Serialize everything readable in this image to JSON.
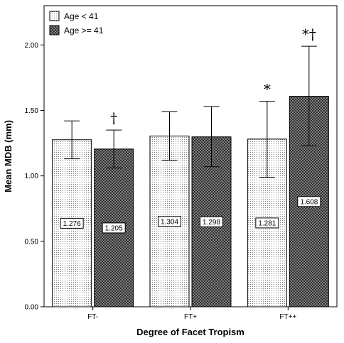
{
  "chart_data": {
    "type": "bar",
    "xlabel": "Degree of Facet Tropism",
    "ylabel": "Mean MDB (mm)",
    "ylim": [
      0,
      2.3
    ],
    "yticks": [
      "0.00",
      "0.50",
      "1.00",
      "1.50",
      "2.00"
    ],
    "categories": [
      "FT-",
      "FT+",
      "FT++"
    ],
    "legend_position": "top-left",
    "grid": false,
    "series": [
      {
        "name": "Age < 41",
        "pattern": "dots",
        "values": [
          1.276,
          1.304,
          1.281
        ],
        "value_labels": [
          "1.276",
          "1.304",
          "1.281"
        ],
        "error_low": [
          1.13,
          1.12,
          0.99
        ],
        "error_high": [
          1.42,
          1.49,
          1.57
        ],
        "annotations": [
          "",
          "",
          "*"
        ]
      },
      {
        "name": "Age >= 41",
        "pattern": "crosshatch",
        "values": [
          1.205,
          1.298,
          1.608
        ],
        "value_labels": [
          "1.205",
          "1.298",
          "1.608"
        ],
        "error_low": [
          1.06,
          1.07,
          1.23
        ],
        "error_high": [
          1.35,
          1.53,
          1.99
        ],
        "annotations": [
          "†",
          "",
          "*†"
        ]
      }
    ]
  }
}
